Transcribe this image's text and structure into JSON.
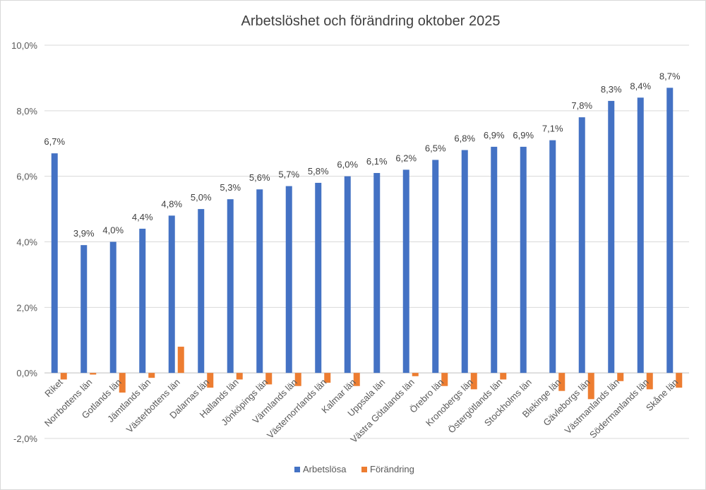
{
  "chart_data": {
    "type": "bar",
    "title": "Arbetslöshet och förändring oktober 2025",
    "categories": [
      "Riket",
      "Norrbottens län",
      "Gotlands län",
      "Jämtlands län",
      "Västerbottens län",
      "Dalarnas län",
      "Hallands län",
      "Jönköpings län",
      "Värmlands län",
      "Västernorrlands län",
      "Kalmar län",
      "Uppsala län",
      "Västra Götalands län",
      "Örebro län",
      "Kronobergs län",
      "Östergötlands län",
      "Stockholms län",
      "Blekinge län",
      "Gävleborgs län",
      "Västmanlands län",
      "Södermanlands län",
      "Skåne län"
    ],
    "series": [
      {
        "name": "Arbetslösa",
        "color": "#4472C4",
        "values": [
          6.7,
          3.9,
          4.0,
          4.4,
          4.8,
          5.0,
          5.3,
          5.6,
          5.7,
          5.8,
          6.0,
          6.1,
          6.2,
          6.5,
          6.8,
          6.9,
          6.9,
          7.1,
          7.8,
          8.3,
          8.4,
          8.7
        ],
        "labels": [
          "6,7%",
          "3,9%",
          "4,0%",
          "4,4%",
          "4,8%",
          "5,0%",
          "5,3%",
          "5,6%",
          "5,7%",
          "5,8%",
          "6,0%",
          "6,1%",
          "6,2%",
          "6,5%",
          "6,8%",
          "6,9%",
          "6,9%",
          "7,1%",
          "7,8%",
          "8,3%",
          "8,4%",
          "8,7%"
        ]
      },
      {
        "name": "Förändring",
        "color": "#ED7D31",
        "values": [
          -0.2,
          -0.05,
          -0.6,
          -0.15,
          0.8,
          -0.45,
          -0.2,
          -0.35,
          -0.4,
          -0.3,
          -0.4,
          0.0,
          -0.1,
          -0.4,
          -0.5,
          -0.2,
          0.0,
          -0.55,
          -0.8,
          -0.25,
          -0.5,
          -0.45
        ]
      }
    ],
    "ylim": [
      -2,
      10
    ],
    "yticks": [
      -2,
      0,
      2,
      4,
      6,
      8,
      10
    ],
    "ytick_labels": [
      "-2,0%",
      "0,0%",
      "2,0%",
      "4,0%",
      "6,0%",
      "8,0%",
      "10,0%"
    ],
    "grid": true,
    "legend_position": "bottom"
  }
}
